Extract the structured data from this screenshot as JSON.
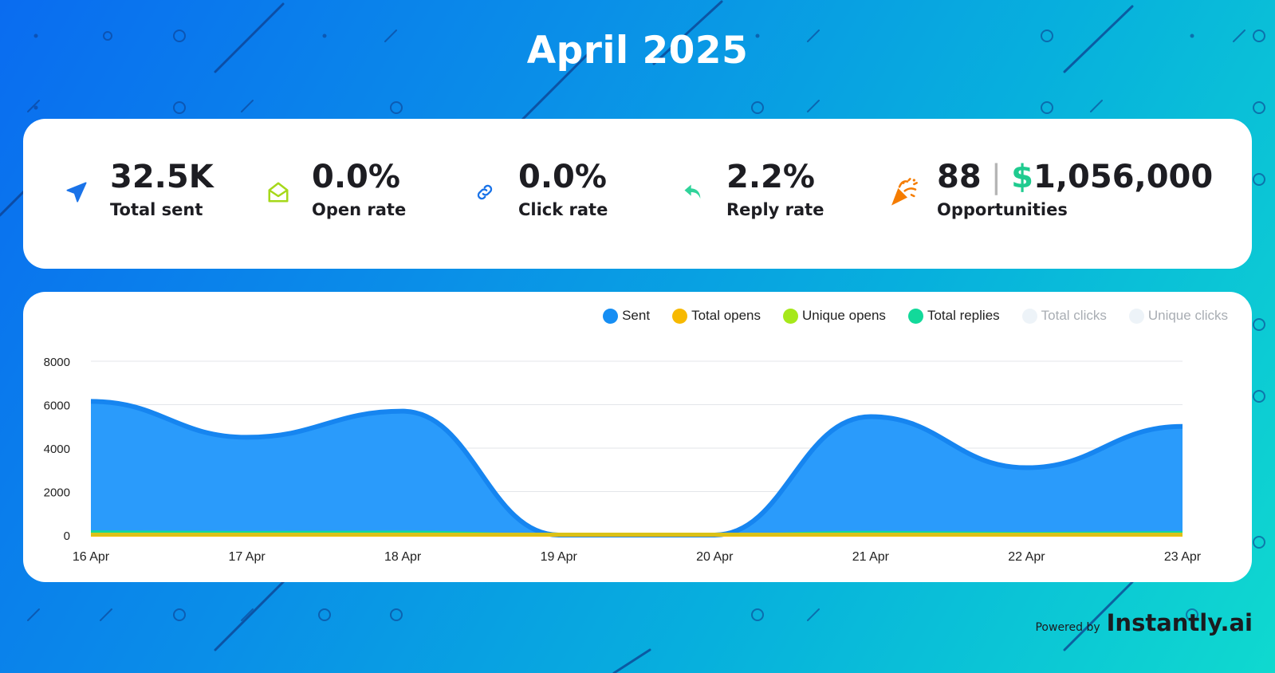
{
  "title": "April 2025",
  "stats": [
    {
      "value": "32.5K",
      "label": "Total sent",
      "icon": "send-icon"
    },
    {
      "value": "0.0%",
      "label": "Open rate",
      "icon": "open-envelope-icon"
    },
    {
      "value": "0.0%",
      "label": "Click rate",
      "icon": "link-icon"
    },
    {
      "value": "2.2%",
      "label": "Reply rate",
      "icon": "reply-icon"
    },
    {
      "value": "88",
      "separator": "|",
      "currency": "$",
      "amount": "1,056,000",
      "label": "Opportunities",
      "icon": "party-popper-icon"
    }
  ],
  "legend": [
    {
      "label": "Sent",
      "color": "#168ef3",
      "active": true
    },
    {
      "label": "Total opens",
      "color": "#f7b900",
      "active": true
    },
    {
      "label": "Unique opens",
      "color": "#a6e81a",
      "active": true
    },
    {
      "label": "Total replies",
      "color": "#12d99a",
      "active": true
    },
    {
      "label": "Total clicks",
      "color": "#edf3f8",
      "active": false
    },
    {
      "label": "Unique clicks",
      "color": "#edf3f8",
      "active": false
    }
  ],
  "chart_data": {
    "type": "area",
    "x": [
      "16 Apr",
      "17 Apr",
      "18 Apr",
      "19 Apr",
      "20 Apr",
      "21 Apr",
      "22 Apr",
      "23 Apr"
    ],
    "ylim": [
      0,
      8000
    ],
    "yticks": [
      "0",
      "2000",
      "4000",
      "6000",
      "8000"
    ],
    "grid": true,
    "legend_position": "top-right",
    "series": [
      {
        "name": "Sent",
        "color": "#168ef3",
        "values": [
          6150,
          4500,
          5700,
          0,
          0,
          5450,
          3100,
          5000
        ]
      },
      {
        "name": "Total opens",
        "color": "#f7b900",
        "values": [
          0,
          0,
          0,
          0,
          0,
          0,
          0,
          0
        ]
      },
      {
        "name": "Unique opens",
        "color": "#a6e81a",
        "values": [
          0,
          0,
          0,
          0,
          0,
          0,
          0,
          0
        ]
      },
      {
        "name": "Total replies",
        "color": "#12d99a",
        "values": [
          140,
          110,
          130,
          0,
          0,
          120,
          70,
          110
        ]
      }
    ]
  },
  "footer": {
    "powered_by": "Powered by",
    "brand": "Instantly.ai"
  }
}
